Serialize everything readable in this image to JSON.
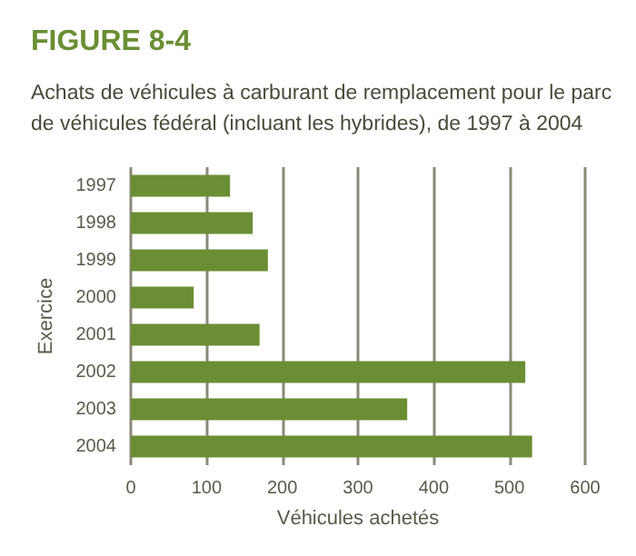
{
  "chart_data": {
    "type": "bar",
    "orientation": "horizontal",
    "title": "FIGURE 8-4",
    "subtitle": "Achats de véhicules à carburant de remplacement pour le parc\nde véhicules fédéral (incluant les hybrides), de 1997 à 2004",
    "xlabel": "Véhicules achetés",
    "ylabel": "Exercice",
    "categories": [
      "1997",
      "1998",
      "1999",
      "2000",
      "2001",
      "2002",
      "2003",
      "2004"
    ],
    "values": [
      131,
      161,
      181,
      83,
      170,
      521,
      365,
      530
    ],
    "color": "#6b8e34",
    "xlim": [
      0,
      600
    ],
    "xticks": [
      0,
      100,
      200,
      300,
      400,
      500,
      600
    ],
    "grid": "x"
  }
}
